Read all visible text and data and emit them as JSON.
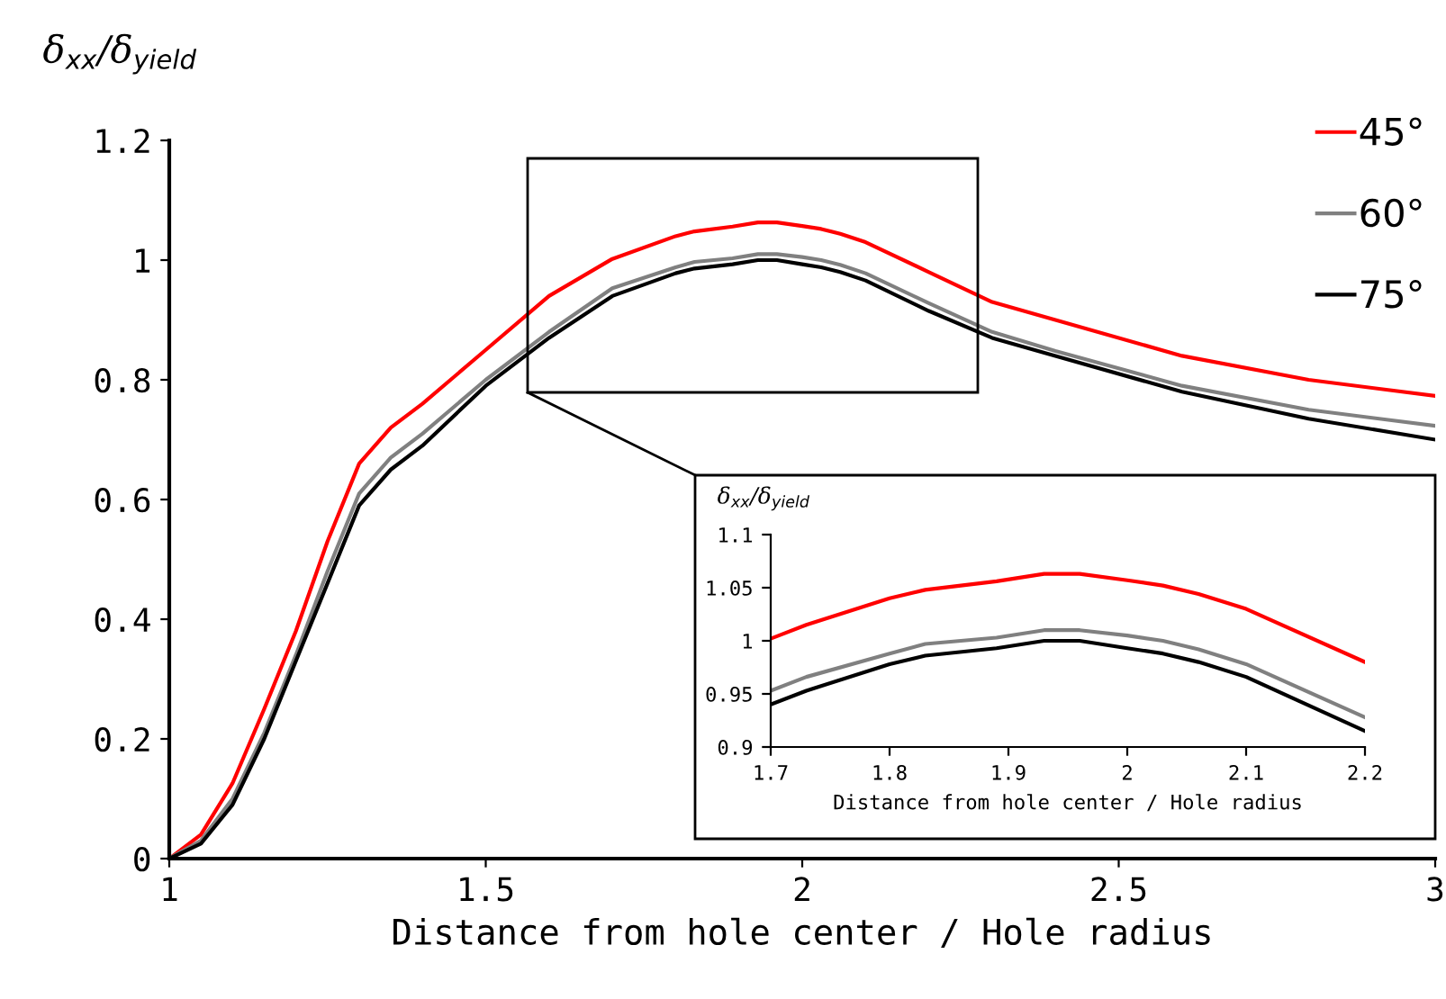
{
  "chart_data": [
    {
      "type": "line",
      "ylabel": "δ$_{xx}$/δ$_{yield}$",
      "xlabel": "Distance from hole center / Hole radius",
      "xlim": [
        1,
        3
      ],
      "xticks": [
        1,
        1.5,
        2,
        2.5,
        3
      ],
      "ylim": [
        0,
        1.2
      ],
      "yticks": [
        0,
        0.2,
        0.4,
        0.6,
        0.8,
        1,
        1.2
      ],
      "legend": "top right",
      "grid": false,
      "marker": "none",
      "line_style": "solid",
      "x": [
        1,
        1.05,
        1.1,
        1.15,
        1.2,
        1.25,
        1.3,
        1.35,
        1.4,
        1.5,
        1.6,
        1.7,
        1.8,
        1.83,
        1.89,
        1.93,
        1.96,
        2.0,
        2.03,
        2.06,
        2.1,
        2.2,
        2.3,
        2.4,
        2.6,
        2.8,
        3.0
      ],
      "series": [
        {
          "name": "45°",
          "color": "#ff0000",
          "values": [
            0,
            0.04,
            0.126,
            0.25,
            0.38,
            0.53,
            0.66,
            0.72,
            0.76,
            0.85,
            0.94,
            1.002,
            1.04,
            1.048,
            1.056,
            1.063,
            1.063,
            1.057,
            1.052,
            1.044,
            1.03,
            0.98,
            0.93,
            0.9,
            0.84,
            0.8,
            0.773
          ]
        },
        {
          "name": "60°",
          "color": "#808080",
          "values": [
            0,
            0.03,
            0.1,
            0.21,
            0.34,
            0.48,
            0.61,
            0.67,
            0.71,
            0.8,
            0.88,
            0.953,
            0.988,
            0.997,
            1.003,
            1.01,
            1.01,
            1.005,
            1.0,
            0.992,
            0.978,
            0.928,
            0.88,
            0.848,
            0.79,
            0.75,
            0.723
          ]
        },
        {
          "name": "75°",
          "color": "#000000",
          "values": [
            0,
            0.025,
            0.09,
            0.2,
            0.33,
            0.46,
            0.59,
            0.65,
            0.69,
            0.79,
            0.87,
            0.94,
            0.978,
            0.986,
            0.993,
            1.0,
            1.0,
            0.993,
            0.988,
            0.98,
            0.966,
            0.915,
            0.87,
            0.84,
            0.78,
            0.735,
            0.7
          ]
        }
      ]
    },
    {
      "type": "line",
      "ylabel": "δ$_{xx}$/δ$_{yield}$",
      "xlabel": "Distance from hole center / Hole radius",
      "xlim": [
        1.7,
        2.2
      ],
      "xticks": [
        1.7,
        1.8,
        1.9,
        2,
        2.1,
        2.2
      ],
      "ylim": [
        0.9,
        1.1
      ],
      "yticks": [
        0.9,
        0.95,
        1,
        1.05,
        1.1
      ],
      "grid": false,
      "marker": "none",
      "line_style": "solid",
      "x": [
        1.7,
        1.73,
        1.8,
        1.83,
        1.89,
        1.93,
        1.96,
        2.0,
        2.03,
        2.06,
        2.1,
        2.2
      ],
      "series": [
        {
          "color": "#ff0000",
          "values": [
            1.002,
            1.015,
            1.04,
            1.048,
            1.056,
            1.063,
            1.063,
            1.057,
            1.052,
            1.044,
            1.03,
            0.98
          ]
        },
        {
          "color": "#808080",
          "values": [
            0.953,
            0.966,
            0.988,
            0.997,
            1.003,
            1.01,
            1.01,
            1.005,
            1.0,
            0.992,
            0.978,
            0.928
          ]
        },
        {
          "color": "#000000",
          "values": [
            0.94,
            0.953,
            0.978,
            0.986,
            0.993,
            1.0,
            1.0,
            0.993,
            0.988,
            0.98,
            0.966,
            0.915
          ]
        }
      ]
    }
  ]
}
